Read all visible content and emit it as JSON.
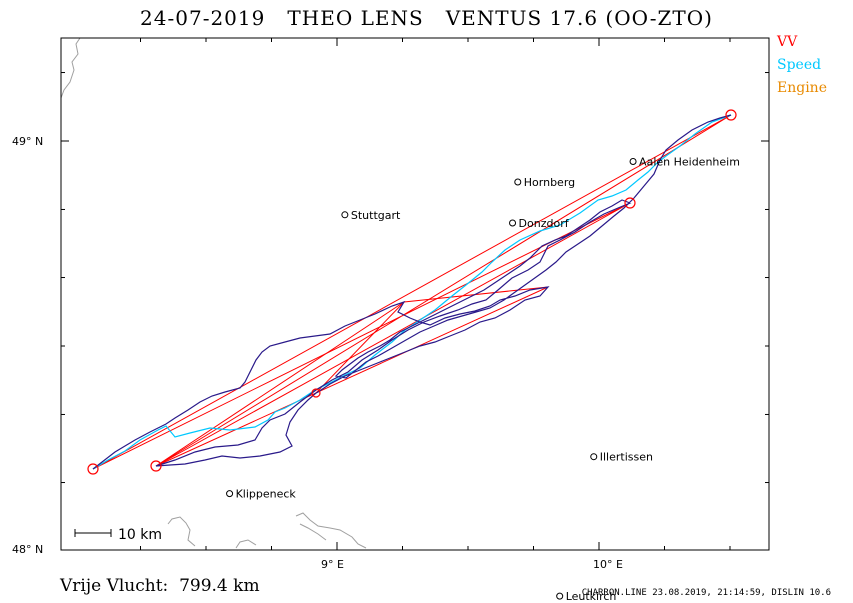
{
  "header": {
    "title": "24-07-2019   THEO LENS   VENTUS 17.6 (OO-ZTO)"
  },
  "legend": {
    "items": [
      {
        "label": "VV",
        "color": "#ff0000"
      },
      {
        "label": "Speed",
        "color": "#00c8ff"
      },
      {
        "label": "Engine",
        "color": "#e88a00"
      }
    ]
  },
  "axes": {
    "lat_labels": [
      "49° N",
      "48° N"
    ],
    "lon_labels": [
      "9° E",
      "10° E"
    ]
  },
  "scale_bar": {
    "label": "10 km"
  },
  "places": [
    {
      "name": "Aalen Heidenheim",
      "lon": 10.13,
      "lat": 48.95
    },
    {
      "name": "Hornberg",
      "lon": 9.69,
      "lat": 48.9
    },
    {
      "name": "Donzdorf",
      "lon": 9.67,
      "lat": 48.8
    },
    {
      "name": "Stuttgart",
      "lon": 9.03,
      "lat": 48.82
    },
    {
      "name": "Illertissen",
      "lon": 9.98,
      "lat": 48.23
    },
    {
      "name": "Klippeneck",
      "lon": 8.59,
      "lat": 48.14
    },
    {
      "name": "Leutkirch",
      "lon": 9.85,
      "lat": 47.89
    }
  ],
  "footer": {
    "distance_text": "Vrije Vlucht:  799.4 km",
    "credit": "CHARRON.LINE 23.08.2019, 21:14:59, DISLIN 10.6"
  },
  "colors": {
    "track": "#2a1a8a",
    "speed": "#00c8ff",
    "task": "#ff0000",
    "coast": "#a0a0a0"
  }
}
